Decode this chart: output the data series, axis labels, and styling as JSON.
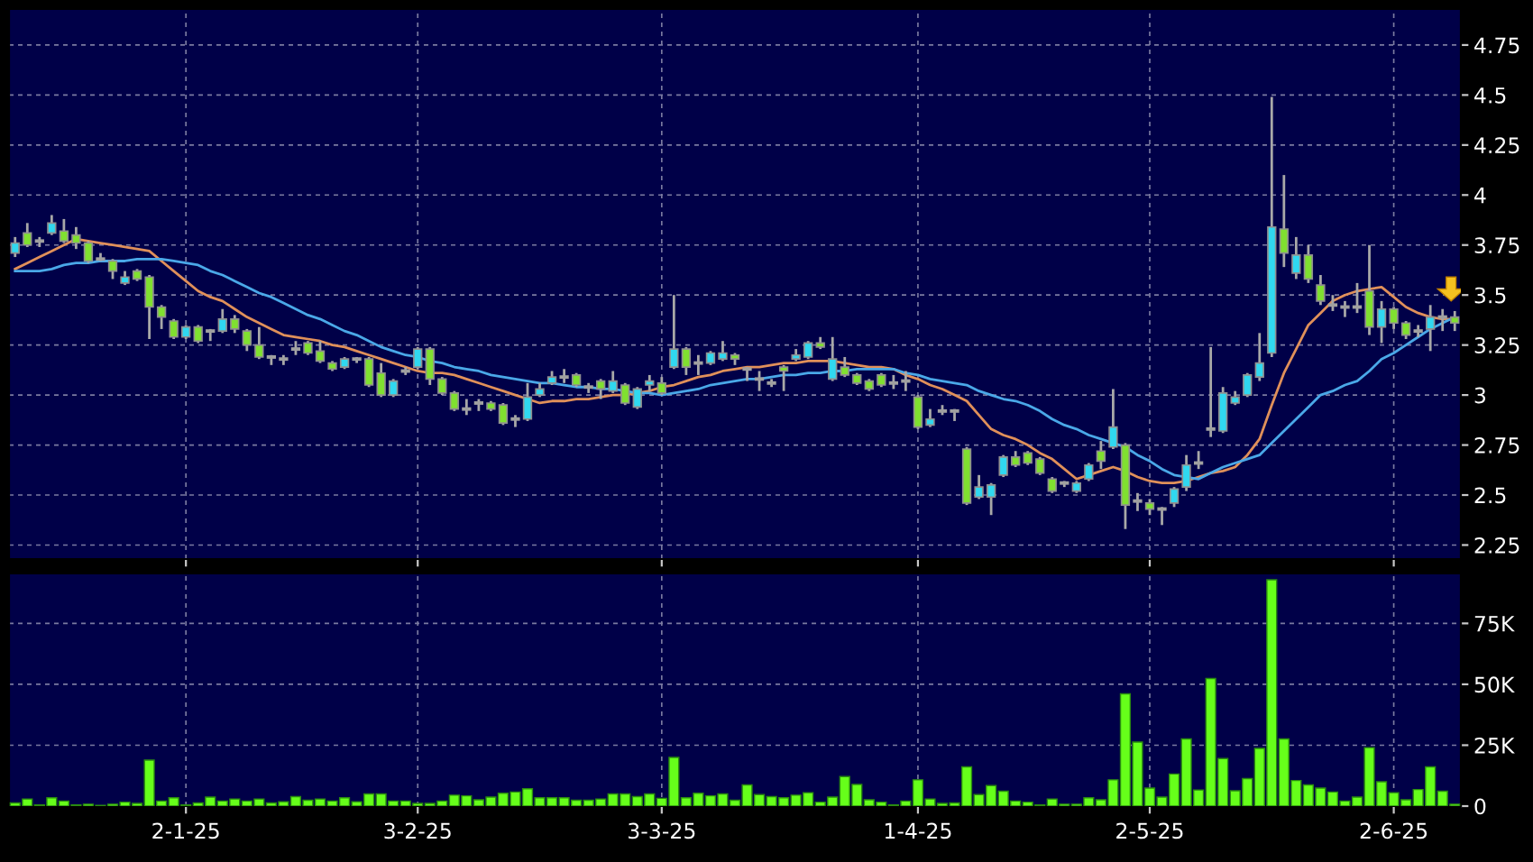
{
  "chart_data": [
    {
      "type": "candlestick",
      "tick_labels": "y",
      "grid": true,
      "ylim": [
        2.18,
        4.93
      ],
      "yticks": [
        2.25,
        2.5,
        2.75,
        3,
        3.25,
        3.5,
        3.75,
        4,
        4.25,
        4.5,
        4.75
      ],
      "categories": [
        null,
        null,
        null,
        null,
        null,
        null,
        null,
        null,
        null,
        null,
        null,
        null,
        null,
        null,
        null,
        null,
        null,
        null,
        null,
        null,
        null,
        null,
        null,
        null,
        null,
        null,
        null,
        null,
        null,
        null,
        null,
        null,
        null,
        null,
        null,
        null,
        null,
        null,
        null,
        null,
        null,
        null,
        null,
        null,
        null,
        null,
        null,
        null,
        null,
        null,
        null,
        null,
        null,
        null,
        null,
        null,
        null,
        null,
        null,
        null,
        null,
        null,
        null,
        null,
        null,
        null,
        null,
        null,
        null,
        null,
        null,
        null,
        null,
        null,
        null,
        null,
        null,
        null,
        null,
        null,
        null,
        null,
        null,
        null,
        null,
        null,
        null,
        null,
        null,
        null,
        null,
        null,
        null,
        null,
        null,
        null,
        null,
        null,
        null,
        null,
        null,
        null,
        null,
        null,
        null,
        null,
        null,
        null,
        null,
        null,
        null,
        null,
        null,
        null,
        null,
        null,
        null,
        null,
        null
      ],
      "ohlc": [
        [
          3.71,
          3.79,
          3.69,
          3.76
        ],
        [
          3.81,
          3.86,
          3.74,
          3.75
        ],
        [
          3.77,
          3.79,
          3.74,
          3.77
        ],
        [
          3.81,
          3.9,
          3.8,
          3.86
        ],
        [
          3.82,
          3.88,
          3.76,
          3.77
        ],
        [
          3.8,
          3.84,
          3.73,
          3.76
        ],
        [
          3.76,
          3.77,
          3.66,
          3.67
        ],
        [
          3.68,
          3.71,
          3.67,
          3.68
        ],
        [
          3.67,
          3.68,
          3.58,
          3.62
        ],
        [
          3.56,
          3.62,
          3.55,
          3.59
        ],
        [
          3.62,
          3.63,
          3.57,
          3.58
        ],
        [
          3.59,
          3.6,
          3.28,
          3.44
        ],
        [
          3.44,
          3.45,
          3.33,
          3.39
        ],
        [
          3.37,
          3.38,
          3.28,
          3.29
        ],
        [
          3.29,
          3.35,
          3.28,
          3.34
        ],
        [
          3.34,
          3.35,
          3.26,
          3.27
        ],
        [
          3.32,
          3.33,
          3.27,
          3.32
        ],
        [
          3.32,
          3.43,
          3.31,
          3.38
        ],
        [
          3.38,
          3.4,
          3.31,
          3.33
        ],
        [
          3.32,
          3.33,
          3.22,
          3.25
        ],
        [
          3.25,
          3.34,
          3.18,
          3.19
        ],
        [
          3.19,
          3.2,
          3.15,
          3.19
        ],
        [
          3.18,
          3.2,
          3.15,
          3.18
        ],
        [
          3.23,
          3.27,
          3.2,
          3.23
        ],
        [
          3.26,
          3.27,
          3.2,
          3.21
        ],
        [
          3.22,
          3.27,
          3.16,
          3.17
        ],
        [
          3.16,
          3.17,
          3.12,
          3.13
        ],
        [
          3.14,
          3.19,
          3.13,
          3.18
        ],
        [
          3.18,
          3.19,
          3.16,
          3.18
        ],
        [
          3.18,
          3.19,
          3.04,
          3.05
        ],
        [
          3.11,
          3.16,
          2.99,
          3.0
        ],
        [
          3.0,
          3.08,
          2.99,
          3.07
        ],
        [
          3.12,
          3.14,
          3.1,
          3.12
        ],
        [
          3.14,
          3.24,
          3.13,
          3.23
        ],
        [
          3.23,
          3.24,
          3.05,
          3.08
        ],
        [
          3.08,
          3.09,
          3.0,
          3.01
        ],
        [
          3.01,
          3.02,
          2.92,
          2.93
        ],
        [
          2.93,
          2.98,
          2.9,
          2.93
        ],
        [
          2.96,
          2.98,
          2.92,
          2.96
        ],
        [
          2.96,
          2.97,
          2.92,
          2.93
        ],
        [
          2.95,
          2.96,
          2.85,
          2.86
        ],
        [
          2.88,
          2.9,
          2.84,
          2.88
        ],
        [
          2.88,
          3.06,
          2.87,
          2.99
        ],
        [
          3.0,
          3.06,
          2.99,
          3.03
        ],
        [
          3.06,
          3.12,
          3.05,
          3.09
        ],
        [
          3.09,
          3.13,
          3.06,
          3.09
        ],
        [
          3.1,
          3.11,
          3.04,
          3.05
        ],
        [
          3.04,
          3.06,
          3.01,
          3.04
        ],
        [
          3.07,
          3.08,
          2.98,
          3.03
        ],
        [
          3.02,
          3.12,
          3.01,
          3.07
        ],
        [
          3.05,
          3.06,
          2.95,
          2.96
        ],
        [
          2.94,
          3.04,
          2.93,
          3.03
        ],
        [
          3.05,
          3.1,
          3.02,
          3.07
        ],
        [
          3.06,
          3.09,
          3.0,
          3.01
        ],
        [
          3.14,
          3.5,
          3.13,
          3.23
        ],
        [
          3.23,
          3.24,
          3.1,
          3.14
        ],
        [
          3.16,
          3.2,
          3.1,
          3.16
        ],
        [
          3.16,
          3.22,
          3.15,
          3.21
        ],
        [
          3.18,
          3.27,
          3.17,
          3.21
        ],
        [
          3.2,
          3.21,
          3.15,
          3.18
        ],
        [
          3.13,
          3.14,
          3.07,
          3.13
        ],
        [
          3.08,
          3.12,
          3.02,
          3.08
        ],
        [
          3.06,
          3.08,
          3.04,
          3.06
        ],
        [
          3.14,
          3.15,
          3.02,
          3.12
        ],
        [
          3.18,
          3.23,
          3.17,
          3.2
        ],
        [
          3.19,
          3.27,
          3.18,
          3.26
        ],
        [
          3.26,
          3.29,
          3.23,
          3.24
        ],
        [
          3.08,
          3.29,
          3.07,
          3.18
        ],
        [
          3.14,
          3.19,
          3.09,
          3.1
        ],
        [
          3.1,
          3.11,
          3.05,
          3.06
        ],
        [
          3.07,
          3.08,
          3.02,
          3.03
        ],
        [
          3.1,
          3.11,
          3.04,
          3.05
        ],
        [
          3.06,
          3.1,
          3.03,
          3.06
        ],
        [
          3.07,
          3.12,
          3.02,
          3.07
        ],
        [
          2.99,
          3.0,
          2.83,
          2.84
        ],
        [
          2.85,
          2.93,
          2.84,
          2.88
        ],
        [
          2.92,
          2.95,
          2.9,
          2.92
        ],
        [
          2.92,
          2.93,
          2.87,
          2.92
        ],
        [
          2.73,
          2.74,
          2.45,
          2.46
        ],
        [
          2.49,
          2.6,
          2.48,
          2.54
        ],
        [
          2.49,
          2.56,
          2.4,
          2.55
        ],
        [
          2.6,
          2.7,
          2.59,
          2.69
        ],
        [
          2.69,
          2.72,
          2.64,
          2.65
        ],
        [
          2.71,
          2.72,
          2.65,
          2.66
        ],
        [
          2.68,
          2.69,
          2.6,
          2.61
        ],
        [
          2.58,
          2.59,
          2.51,
          2.52
        ],
        [
          2.56,
          2.57,
          2.54,
          2.56
        ],
        [
          2.52,
          2.57,
          2.51,
          2.56
        ],
        [
          2.58,
          2.66,
          2.57,
          2.65
        ],
        [
          2.72,
          2.77,
          2.63,
          2.67
        ],
        [
          2.74,
          3.03,
          2.73,
          2.84
        ],
        [
          2.75,
          2.76,
          2.33,
          2.45
        ],
        [
          2.47,
          2.51,
          2.42,
          2.47
        ],
        [
          2.46,
          2.48,
          2.4,
          2.43
        ],
        [
          2.43,
          2.44,
          2.35,
          2.43
        ],
        [
          2.46,
          2.54,
          2.44,
          2.53
        ],
        [
          2.54,
          2.7,
          2.52,
          2.65
        ],
        [
          2.66,
          2.72,
          2.63,
          2.66
        ],
        [
          2.83,
          3.24,
          2.79,
          2.83
        ],
        [
          2.82,
          3.04,
          2.81,
          3.01
        ],
        [
          2.96,
          3.02,
          2.95,
          2.99
        ],
        [
          3.0,
          3.11,
          2.99,
          3.1
        ],
        [
          3.09,
          3.31,
          3.07,
          3.16
        ],
        [
          3.21,
          4.49,
          3.19,
          3.84
        ],
        [
          3.83,
          4.1,
          3.64,
          3.71
        ],
        [
          3.61,
          3.79,
          3.58,
          3.7
        ],
        [
          3.7,
          3.75,
          3.56,
          3.58
        ],
        [
          3.55,
          3.6,
          3.45,
          3.47
        ],
        [
          3.45,
          3.5,
          3.42,
          3.45
        ],
        [
          3.44,
          3.47,
          3.39,
          3.44
        ],
        [
          3.44,
          3.56,
          3.41,
          3.44
        ],
        [
          3.52,
          3.75,
          3.3,
          3.34
        ],
        [
          3.34,
          3.47,
          3.26,
          3.43
        ],
        [
          3.43,
          3.44,
          3.33,
          3.36
        ],
        [
          3.36,
          3.37,
          3.28,
          3.3
        ],
        [
          3.32,
          3.35,
          3.29,
          3.32
        ],
        [
          3.33,
          3.45,
          3.22,
          3.39
        ],
        [
          3.39,
          3.43,
          3.32,
          3.39
        ],
        [
          3.39,
          3.42,
          3.32,
          3.36
        ]
      ],
      "colors": [
        "#30d8f0",
        "#80e030",
        "#a0a0a0",
        "#30d8f0",
        "#80e030",
        "#80e030",
        "#80e030",
        "#a0a0a0",
        "#80e030",
        "#30d8f0",
        "#80e030",
        "#80e030",
        "#80e030",
        "#80e030",
        "#30d8f0",
        "#80e030",
        "#a0a0a0",
        "#30d8f0",
        "#80e030",
        "#80e030",
        "#80e030",
        "#a0a0a0",
        "#a0a0a0",
        "#a0a0a0",
        "#80e030",
        "#80e030",
        "#80e030",
        "#30d8f0",
        "#a0a0a0",
        "#80e030",
        "#80e030",
        "#30d8f0",
        "#a0a0a0",
        "#30d8f0",
        "#80e030",
        "#80e030",
        "#80e030",
        "#a0a0a0",
        "#a0a0a0",
        "#80e030",
        "#80e030",
        "#a0a0a0",
        "#30d8f0",
        "#30d8f0",
        "#30d8f0",
        "#a0a0a0",
        "#80e030",
        "#a0a0a0",
        "#80e030",
        "#30d8f0",
        "#80e030",
        "#30d8f0",
        "#30d8f0",
        "#80e030",
        "#30d8f0",
        "#80e030",
        "#a0a0a0",
        "#30d8f0",
        "#30d8f0",
        "#80e030",
        "#a0a0a0",
        "#a0a0a0",
        "#a0a0a0",
        "#80e030",
        "#30d8f0",
        "#30d8f0",
        "#80e030",
        "#30d8f0",
        "#80e030",
        "#80e030",
        "#80e030",
        "#80e030",
        "#a0a0a0",
        "#a0a0a0",
        "#80e030",
        "#30d8f0",
        "#a0a0a0",
        "#a0a0a0",
        "#80e030",
        "#30d8f0",
        "#30d8f0",
        "#30d8f0",
        "#80e030",
        "#80e030",
        "#80e030",
        "#80e030",
        "#a0a0a0",
        "#30d8f0",
        "#30d8f0",
        "#80e030",
        "#30d8f0",
        "#80e030",
        "#a0a0a0",
        "#80e030",
        "#a0a0a0",
        "#30d8f0",
        "#30d8f0",
        "#a0a0a0",
        "#a0a0a0",
        "#30d8f0",
        "#30d8f0",
        "#30d8f0",
        "#30d8f0",
        "#30d8f0",
        "#80e030",
        "#30d8f0",
        "#80e030",
        "#80e030",
        "#a0a0a0",
        "#a0a0a0",
        "#a0a0a0",
        "#80e030",
        "#30d8f0",
        "#80e030",
        "#80e030",
        "#a0a0a0",
        "#30d8f0",
        "#a0a0a0",
        "#80e030"
      ],
      "series": [
        {
          "type": "line",
          "color": "#e0905a",
          "values": [
            3.63,
            3.66,
            3.69,
            3.72,
            3.75,
            3.78,
            3.77,
            3.76,
            3.75,
            3.74,
            3.73,
            3.72,
            3.67,
            3.62,
            3.57,
            3.52,
            3.49,
            3.47,
            3.43,
            3.39,
            3.36,
            3.33,
            3.3,
            3.29,
            3.28,
            3.27,
            3.25,
            3.24,
            3.22,
            3.2,
            3.18,
            3.16,
            3.14,
            3.12,
            3.11,
            3.11,
            3.1,
            3.08,
            3.06,
            3.04,
            3.02,
            3.0,
            2.98,
            2.96,
            2.97,
            2.97,
            2.98,
            2.98,
            2.99,
            3.0,
            3.0,
            3.01,
            3.02,
            3.04,
            3.05,
            3.07,
            3.09,
            3.1,
            3.12,
            3.13,
            3.14,
            3.14,
            3.15,
            3.16,
            3.16,
            3.17,
            3.17,
            3.17,
            3.16,
            3.15,
            3.14,
            3.14,
            3.13,
            3.1,
            3.08,
            3.05,
            3.03,
            3.0,
            2.97,
            2.9,
            2.83,
            2.8,
            2.78,
            2.75,
            2.71,
            2.68,
            2.63,
            2.58,
            2.6,
            2.62,
            2.64,
            2.62,
            2.59,
            2.57,
            2.56,
            2.56,
            2.57,
            2.59,
            2.61,
            2.62,
            2.64,
            2.7,
            2.78,
            2.95,
            3.11,
            3.23,
            3.35,
            3.41,
            3.47,
            3.5,
            3.52,
            3.53,
            3.54,
            3.49,
            3.44,
            3.41,
            3.39,
            3.38,
            3.38
          ]
        },
        {
          "type": "line",
          "color": "#4aa8e8",
          "values": [
            3.62,
            3.62,
            3.62,
            3.63,
            3.65,
            3.66,
            3.66,
            3.67,
            3.67,
            3.67,
            3.68,
            3.68,
            3.68,
            3.67,
            3.66,
            3.65,
            3.62,
            3.6,
            3.57,
            3.54,
            3.51,
            3.49,
            3.46,
            3.43,
            3.4,
            3.38,
            3.35,
            3.32,
            3.3,
            3.27,
            3.24,
            3.22,
            3.2,
            3.19,
            3.17,
            3.16,
            3.14,
            3.13,
            3.12,
            3.1,
            3.09,
            3.08,
            3.07,
            3.06,
            3.06,
            3.05,
            3.04,
            3.04,
            3.03,
            3.03,
            3.02,
            3.01,
            3.01,
            3.0,
            3.01,
            3.02,
            3.03,
            3.05,
            3.06,
            3.07,
            3.08,
            3.08,
            3.09,
            3.1,
            3.1,
            3.11,
            3.11,
            3.12,
            3.12,
            3.13,
            3.13,
            3.13,
            3.13,
            3.11,
            3.1,
            3.08,
            3.07,
            3.06,
            3.05,
            3.02,
            3.0,
            2.98,
            2.97,
            2.95,
            2.92,
            2.88,
            2.85,
            2.83,
            2.8,
            2.78,
            2.76,
            2.74,
            2.7,
            2.67,
            2.63,
            2.6,
            2.59,
            2.58,
            2.61,
            2.64,
            2.66,
            2.68,
            2.7,
            2.76,
            2.82,
            2.88,
            2.94,
            3.0,
            3.02,
            3.05,
            3.07,
            3.12,
            3.18,
            3.21,
            3.25,
            3.29,
            3.33,
            3.36,
            3.39
          ]
        }
      ]
    },
    {
      "type": "bar",
      "grid": true,
      "color": "#66ff1a",
      "ylim": [
        0,
        95500
      ],
      "yticks": [
        0,
        {
          "value": 25000,
          "label": "25K"
        },
        {
          "value": 50000,
          "label": "50K"
        },
        {
          "value": 75000,
          "label": "75K"
        }
      ],
      "categories": [
        null,
        null,
        null,
        null,
        null,
        null,
        null,
        null,
        null,
        null,
        null,
        null,
        null,
        null,
        "2-1-25",
        null,
        null,
        null,
        null,
        null,
        null,
        null,
        null,
        null,
        null,
        null,
        null,
        null,
        null,
        null,
        null,
        null,
        null,
        "3-2-25",
        null,
        null,
        null,
        null,
        null,
        null,
        null,
        null,
        null,
        null,
        null,
        null,
        null,
        null,
        null,
        null,
        null,
        null,
        null,
        "3-3-25",
        null,
        null,
        null,
        null,
        null,
        null,
        null,
        null,
        null,
        null,
        null,
        null,
        null,
        null,
        null,
        null,
        null,
        null,
        null,
        null,
        "1-4-25",
        null,
        null,
        null,
        null,
        null,
        null,
        null,
        null,
        null,
        null,
        null,
        null,
        null,
        null,
        null,
        null,
        null,
        null,
        "2-5-25",
        null,
        null,
        null,
        null,
        null,
        null,
        null,
        null,
        null,
        null,
        null,
        null,
        null,
        null,
        null,
        null,
        null,
        null,
        null,
        "2-6-25",
        null,
        null,
        null,
        null,
        null
      ],
      "values": [
        1300,
        2900,
        500,
        3400,
        2100,
        500,
        800,
        300,
        800,
        1600,
        1100,
        18900,
        2100,
        3400,
        500,
        1300,
        3700,
        2100,
        2900,
        2100,
        2900,
        1300,
        1800,
        3900,
        2400,
        2900,
        2100,
        3400,
        1800,
        5000,
        5000,
        2100,
        2100,
        1100,
        1100,
        2100,
        4500,
        4200,
        2600,
        3700,
        5300,
        5800,
        7100,
        3400,
        3400,
        3400,
        2400,
        2400,
        2900,
        5000,
        5000,
        3900,
        5000,
        3200,
        20000,
        3400,
        5300,
        4200,
        5000,
        2400,
        8700,
        4700,
        3900,
        3400,
        4500,
        5500,
        1600,
        3700,
        12100,
        8900,
        2600,
        1600,
        500,
        2100,
        10800,
        2900,
        1100,
        1300,
        16100,
        4700,
        8400,
        6100,
        2100,
        1600,
        500,
        2900,
        800,
        800,
        3400,
        2600,
        10800,
        46100,
        26300,
        7400,
        3700,
        13200,
        27600,
        6600,
        52400,
        19500,
        6300,
        11300,
        23700,
        92900,
        27600,
        10500,
        8700,
        7400,
        5800,
        2100,
        3700,
        24000,
        10000,
        5500,
        2600,
        6800,
        16100,
        6100,
        800
      ]
    }
  ]
}
